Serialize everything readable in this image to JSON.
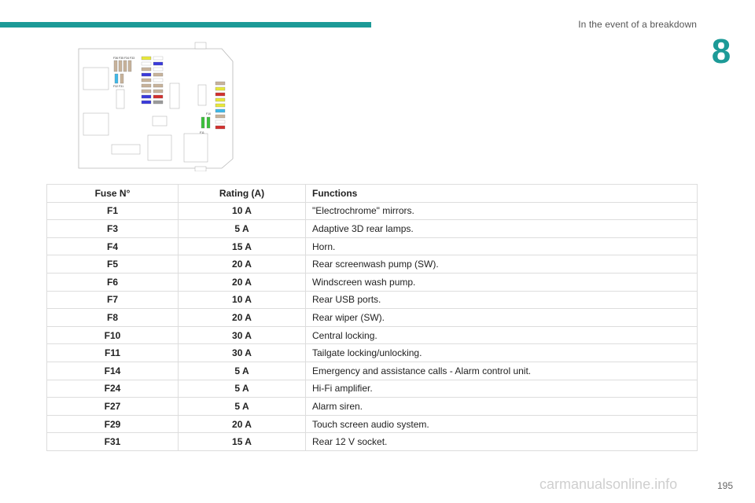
{
  "header": {
    "section_title": "In the event of a breakdown",
    "chapter_number": "8"
  },
  "diagram": {
    "labels": {
      "top_row": "F36 F35 F34 F33",
      "left_pair": "F32 F31",
      "green_pair": "F10",
      "bottom_green": "F11"
    },
    "colors": {
      "beige": "#c8b39b",
      "blue": "#3a3adb",
      "red": "#d2302e",
      "green": "#3cc03c",
      "yellow": "#e8e83a",
      "cyan": "#3fb8e8",
      "gray": "#9b9b9b"
    }
  },
  "table": {
    "headers": [
      "Fuse N°",
      "Rating (A)",
      "Functions"
    ],
    "rows": [
      [
        "F1",
        "10 A",
        "\"Electrochrome\" mirrors."
      ],
      [
        "F3",
        "5 A",
        "Adaptive 3D rear lamps."
      ],
      [
        "F4",
        "15 A",
        "Horn."
      ],
      [
        "F5",
        "20 A",
        "Rear screenwash pump (SW)."
      ],
      [
        "F6",
        "20 A",
        "Windscreen wash pump."
      ],
      [
        "F7",
        "10 A",
        "Rear USB ports."
      ],
      [
        "F8",
        "20 A",
        "Rear wiper (SW)."
      ],
      [
        "F10",
        "30 A",
        "Central locking."
      ],
      [
        "F11",
        "30 A",
        "Tailgate locking/unlocking."
      ],
      [
        "F14",
        "5 A",
        "Emergency and assistance calls - Alarm control unit."
      ],
      [
        "F24",
        "5 A",
        "Hi-Fi amplifier."
      ],
      [
        "F27",
        "5 A",
        "Alarm siren."
      ],
      [
        "F29",
        "20 A",
        "Touch screen audio system."
      ],
      [
        "F31",
        "15 A",
        "Rear 12 V socket."
      ]
    ]
  },
  "footer": {
    "page_number": "195",
    "watermark": "carmanualsonline.info"
  }
}
